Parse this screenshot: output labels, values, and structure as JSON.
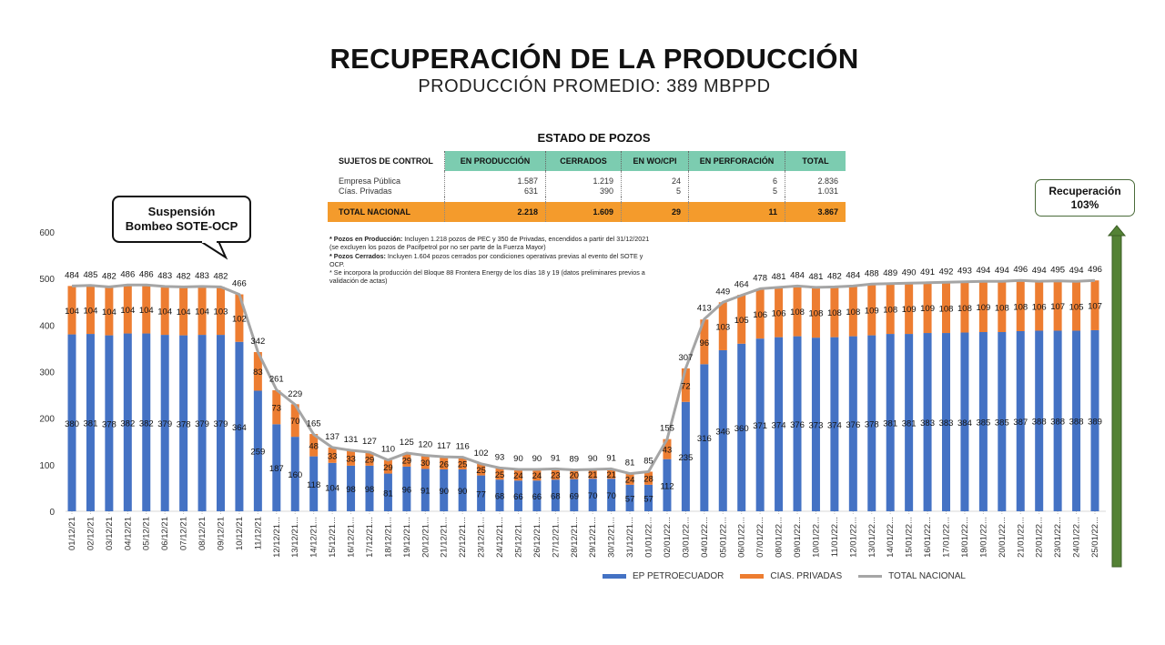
{
  "header": {
    "title": "RECUPERACIÓN DE LA PRODUCCIÓN",
    "subtitle": "PRODUCCIÓN PROMEDIO: 389 MBPPD"
  },
  "wells_table": {
    "title": "ESTADO DE POZOS",
    "headers": [
      "SUJETOS DE CONTROL",
      "EN PRODUCCIÓN",
      "CERRADOS",
      "EN WO/CPI",
      "EN PERFORACIÓN",
      "TOTAL"
    ],
    "rows": [
      [
        "Empresa Pública",
        "1.587",
        "1.219",
        "24",
        "6",
        "2.836"
      ],
      [
        "Cías. Privadas",
        "631",
        "390",
        "5",
        "5",
        "1.031"
      ]
    ],
    "total": [
      "TOTAL NACIONAL",
      "2.218",
      "1.609",
      "29",
      "11",
      "3.867"
    ],
    "header_color": "#7cccb0",
    "total_color": "#f49b2c"
  },
  "notes": [
    {
      "bold": "* Pozos en Producción:",
      "text": " Incluyen 1.218 pozos de PEC y 350 de Privadas, encendidos a partir del 31/12/2021 (se excluyen los pozos de Pacifpetrol por no ser parte de la Fuerza Mayor)"
    },
    {
      "bold": "* Pozos Cerrados:",
      "text": " Incluyen 1.604 pozos cerrados por condiciones operativas previas al evento del SOTE y OCP."
    },
    {
      "bold": "",
      "text": "* Se incorpora la producción del Bloque 88 Frontera Energy de los días 18 y 19 (datos preliminares previos a validación de actas)"
    }
  ],
  "callout": {
    "line1": "Suspensión",
    "line2": "Bombeo SOTE-OCP"
  },
  "recovery": {
    "line1": "Recuperación",
    "line2": "103%",
    "arrow_color": "#548235"
  },
  "chart_data": {
    "type": "bar",
    "stacked": true,
    "title": "RECUPERACIÓN DE LA PRODUCCIÓN",
    "xlabel": "",
    "ylabel": "",
    "ylim": [
      0,
      600
    ],
    "yticks": [
      0,
      100,
      200,
      300,
      400,
      500,
      600
    ],
    "grid": false,
    "legend_position": "bottom-right",
    "categories": [
      "01/12/21",
      "02/12/21",
      "03/12/21",
      "04/12/21",
      "05/12/21",
      "06/12/21",
      "07/12/21",
      "08/12/21",
      "09/12/21",
      "10/12/21",
      "11/12/21",
      "12/12/21...",
      "13/12/21...",
      "14/12/21...",
      "15/12/21...",
      "16/12/21...",
      "17/12/21...",
      "18/12/21...",
      "19/12/21...",
      "20/12/21...",
      "21/12/21...",
      "22/12/21...",
      "23/12/21...",
      "24/12/21...",
      "25/12/21...",
      "26/12/21...",
      "27/12/21...",
      "28/12/21...",
      "29/12/21...",
      "30/12/21...",
      "31/12/21...",
      "01/01/22...",
      "02/01/22...",
      "03/01/22...",
      "04/01/22...",
      "05/01/22...",
      "06/01/22...",
      "07/01/22...",
      "08/01/22...",
      "09/01/22...",
      "10/01/22...",
      "11/01/22...",
      "12/01/22...",
      "13/01/22...",
      "14/01/22...",
      "15/01/22...",
      "16/01/22...",
      "17/01/22...",
      "18/01/22...",
      "19/01/22...",
      "20/01/22...",
      "21/01/22...",
      "22/01/22...",
      "23/01/22...",
      "24/01/22...",
      "25/01/22..."
    ],
    "series": [
      {
        "name": "EP PETROECUADOR",
        "type": "bar",
        "color": "#4472c4",
        "values": [
          380,
          381,
          378,
          382,
          382,
          379,
          378,
          379,
          379,
          364,
          259,
          187,
          160,
          118,
          104,
          98,
          98,
          81,
          96,
          91,
          90,
          90,
          77,
          68,
          66,
          66,
          68,
          69,
          70,
          70,
          57,
          57,
          112,
          235,
          316,
          346,
          360,
          371,
          374,
          376,
          373,
          374,
          376,
          378,
          381,
          381,
          383,
          383,
          384,
          385,
          385,
          387,
          388,
          388,
          388,
          389
        ]
      },
      {
        "name": "CIAS. PRIVADAS",
        "type": "bar",
        "color": "#ed7d31",
        "values": [
          104,
          104,
          104,
          104,
          104,
          104,
          104,
          104,
          103,
          102,
          83,
          73,
          70,
          48,
          33,
          33,
          29,
          29,
          29,
          30,
          26,
          25,
          25,
          25,
          24,
          24,
          23,
          20,
          21,
          21,
          24,
          28,
          43,
          72,
          96,
          103,
          105,
          106,
          106,
          108,
          108,
          108,
          108,
          109,
          108,
          109,
          109,
          108,
          108,
          109,
          108,
          108,
          106,
          107,
          105,
          107
        ]
      },
      {
        "name": "TOTAL NACIONAL",
        "type": "line",
        "color": "#a5a5a5",
        "values": [
          484,
          485,
          482,
          486,
          486,
          483,
          482,
          483,
          482,
          466,
          342,
          261,
          229,
          165,
          137,
          131,
          127,
          110,
          125,
          120,
          117,
          116,
          102,
          93,
          90,
          90,
          91,
          89,
          90,
          91,
          81,
          85,
          155,
          307,
          413,
          449,
          464,
          478,
          481,
          484,
          481,
          482,
          484,
          488,
          489,
          490,
          491,
          492,
          493,
          494,
          494,
          496,
          494,
          495,
          494,
          496
        ]
      }
    ]
  }
}
